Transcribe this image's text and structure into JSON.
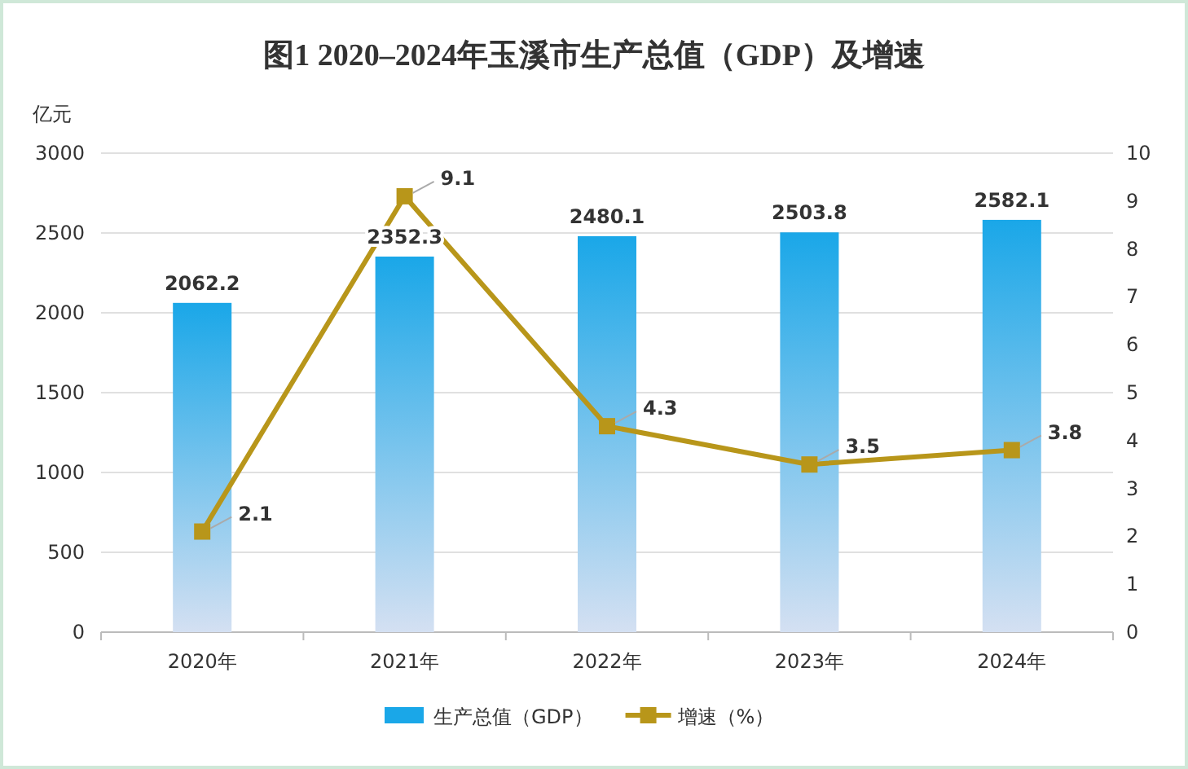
{
  "chart_data": {
    "type": "bar",
    "title": "图1  2020–2024年玉溪市生产总值（GDP）及增速",
    "ylabel": "亿元",
    "categories": [
      "2020年",
      "2021年",
      "2022年",
      "2023年",
      "2024年"
    ],
    "series": [
      {
        "name": "生产总值（GDP）",
        "color": "#1aa7e8",
        "values": [
          2062.2,
          2352.3,
          2480.1,
          2503.8,
          2582.1
        ]
      },
      {
        "name": "增速（%）",
        "type": "line",
        "axis": "y2",
        "color": "#b8961a",
        "marker": "square",
        "values": [
          2.1,
          9.1,
          4.3,
          3.5,
          3.8
        ]
      }
    ],
    "ylim": [
      0,
      3000
    ],
    "yticks": [
      0,
      500,
      1000,
      1500,
      2000,
      2500,
      3000
    ],
    "y2lim": [
      0,
      10
    ],
    "y2ticks": [
      0,
      1,
      2,
      3,
      4,
      5,
      6,
      7,
      8,
      9,
      10
    ],
    "grid": "y",
    "legend": "bottom",
    "data_labels": true
  }
}
